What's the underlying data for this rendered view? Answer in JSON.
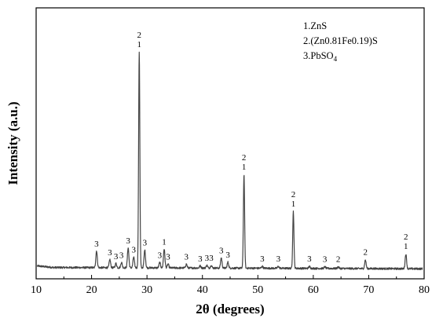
{
  "chart_data": {
    "type": "line",
    "title": "",
    "xlabel": "2θ (degrees)",
    "ylabel": "Intensity (a.u.)",
    "xlim": [
      10,
      80
    ],
    "ylim": [
      0,
      100
    ],
    "x_ticks": [
      "10",
      "20",
      "30",
      "40",
      "50",
      "60",
      "70",
      "80"
    ],
    "grid": false,
    "y_tick_labels": false,
    "baseline": 4.2,
    "legend": {
      "placement": "top-right",
      "entries": [
        {
          "text": "1.ZnS"
        },
        {
          "text": "2.(Zn0.81Fe0.19)S"
        },
        {
          "text": "3.PbSO",
          "subscript": "4"
        }
      ]
    },
    "peaks": [
      {
        "x": 20.9,
        "y": 10.4,
        "labels": [
          "3"
        ]
      },
      {
        "x": 23.3,
        "y": 7.2,
        "labels": [
          "3"
        ]
      },
      {
        "x": 24.4,
        "y": 5.8,
        "labels": [
          "3"
        ]
      },
      {
        "x": 25.4,
        "y": 6.2,
        "labels": [
          "3"
        ]
      },
      {
        "x": 26.6,
        "y": 11.6,
        "labels": [
          "3"
        ]
      },
      {
        "x": 27.6,
        "y": 8.2,
        "labels": [
          "3"
        ]
      },
      {
        "x": 28.6,
        "y": 84.0,
        "labels": [
          "2",
          "1"
        ]
      },
      {
        "x": 29.6,
        "y": 10.8,
        "labels": [
          "3"
        ]
      },
      {
        "x": 32.3,
        "y": 6.2,
        "labels": [
          "3"
        ]
      },
      {
        "x": 33.1,
        "y": 11.2,
        "labels": [
          "1"
        ]
      },
      {
        "x": 33.8,
        "y": 5.6,
        "labels": [
          "3"
        ]
      },
      {
        "x": 37.1,
        "y": 5.6,
        "labels": [
          "3"
        ]
      },
      {
        "x": 39.6,
        "y": 5.0,
        "labels": [
          "3"
        ]
      },
      {
        "x": 40.8,
        "y": 5.2,
        "labels": [
          "3"
        ]
      },
      {
        "x": 41.6,
        "y": 5.2,
        "labels": [
          "3"
        ]
      },
      {
        "x": 43.4,
        "y": 8.0,
        "labels": [
          "3"
        ]
      },
      {
        "x": 44.6,
        "y": 6.4,
        "labels": [
          "3"
        ]
      },
      {
        "x": 47.5,
        "y": 38.8,
        "labels": [
          "2",
          "1"
        ]
      },
      {
        "x": 50.8,
        "y": 4.9,
        "labels": [
          "3"
        ]
      },
      {
        "x": 53.7,
        "y": 4.9,
        "labels": [
          "3"
        ]
      },
      {
        "x": 56.4,
        "y": 25.2,
        "labels": [
          "2",
          "1"
        ]
      },
      {
        "x": 59.3,
        "y": 4.9,
        "labels": [
          "3"
        ]
      },
      {
        "x": 62.1,
        "y": 4.8,
        "labels": [
          "3"
        ]
      },
      {
        "x": 64.5,
        "y": 4.8,
        "labels": [
          "2"
        ]
      },
      {
        "x": 69.4,
        "y": 7.4,
        "labels": [
          "2"
        ]
      },
      {
        "x": 76.7,
        "y": 9.6,
        "labels": [
          "2",
          "1"
        ]
      }
    ]
  }
}
